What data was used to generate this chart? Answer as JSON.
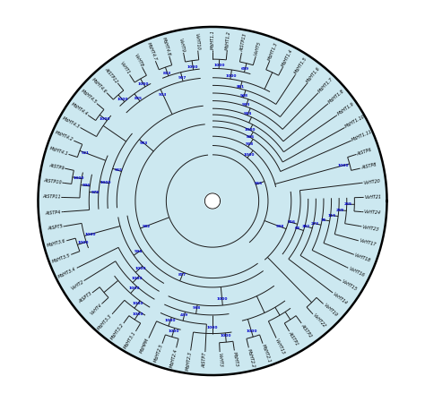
{
  "bg_color": "#cce8f0",
  "outer_bg": "#ffffff",
  "line_color": "#1a1a1a",
  "bootstrap_color": "#0000cc",
  "taxa_ordered": [
    "MdHT1.1",
    "MdHT1.2",
    "AtSTP13",
    "VvHT5",
    "MdHT1.3",
    "MdHT1.4",
    "MdHT1.5",
    "MdHT1.6",
    "MdHT1.7",
    "MdHT1.8",
    "MdHT1.9",
    "MdHT1.10",
    "MdHT1.11",
    "AtSTP6",
    "AtSTP8",
    "VvHT20",
    "VvHT21",
    "VvHT24",
    "VvHT23",
    "VvHT17",
    "VvHT18",
    "VvHT16",
    "VvHT15",
    "VvHT14",
    "VvHT19",
    "VvHT22",
    "AtSTP2",
    "AtSTP1",
    "VvHT13",
    "MdHT2.1",
    "MdHT2.2",
    "MdHT3",
    "VvHT3",
    "AtSTP7",
    "MdHT2.3",
    "MdHT2.4",
    "MdHT2.5",
    "MdHPM",
    "MdHT3.1",
    "MdHT3.2",
    "MdHT3.3",
    "VvHT4",
    "AtSPT3",
    "VvHT2",
    "MdHT3.4",
    "MdHT3.5",
    "MdHT3.6",
    "AtSPT5",
    "AtSTP4",
    "AtSTP11",
    "AtSTP10",
    "AtSTP9",
    "MdHT4.1",
    "MdHT4.2",
    "MdHT4.3",
    "MdHT4.4",
    "MdHT4.5",
    "MdHT4.6",
    "AtSTP12",
    "VvHT1",
    "VvHT8",
    "MdHT4.7",
    "MdHT4.8",
    "VvHT9",
    "VvHT10"
  ]
}
